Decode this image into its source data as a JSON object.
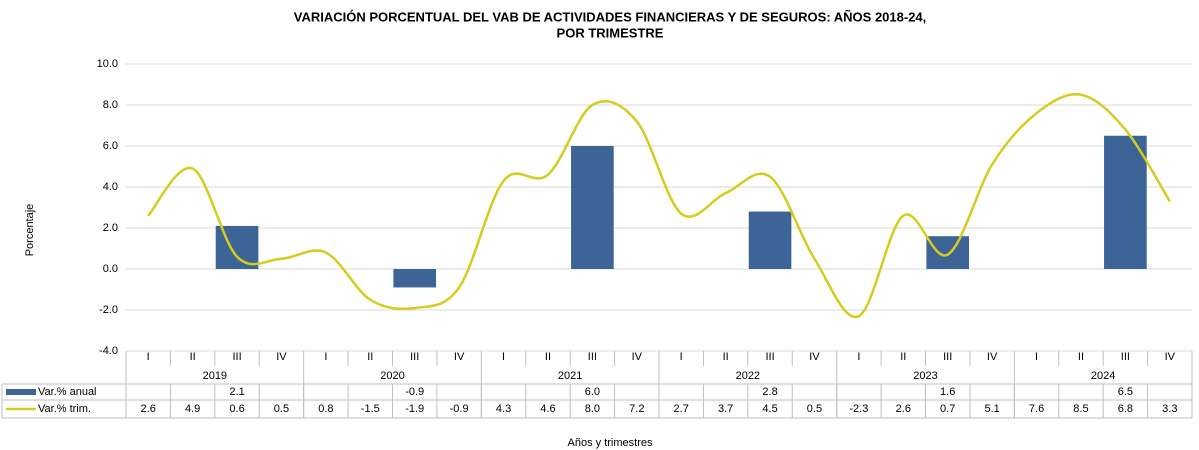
{
  "chart_data": {
    "type": "bar-line",
    "title": [
      "VARIACIÓN PORCENTUAL DEL VAB DE ACTIVIDADES FINANCIERAS Y DE SEGUROS: AÑOS 2018-24,",
      "POR TRIMESTRE"
    ],
    "y_label": "Porcentaje",
    "x_label": "Años y trimestres",
    "categories": [
      "I",
      "II",
      "III",
      "IV",
      "I",
      "II",
      "III",
      "IV",
      "I",
      "II",
      "III",
      "IV",
      "I",
      "II",
      "III",
      "IV",
      "I",
      "II",
      "III",
      "IV",
      "I",
      "II",
      "III",
      "IV"
    ],
    "years": [
      "2019",
      "2020",
      "2021",
      "2022",
      "2023",
      "2024"
    ],
    "ylim": [
      -4,
      10
    ],
    "yticks": [
      {
        "value": -4,
        "label": "-4.0"
      },
      {
        "value": -2,
        "label": "-2.0"
      },
      {
        "value": 0,
        "label": "0.0"
      },
      {
        "value": 2,
        "label": "2.0"
      },
      {
        "value": 4,
        "label": "4.0"
      },
      {
        "value": 6,
        "label": "6.0"
      },
      {
        "value": 8,
        "label": "8.0"
      },
      {
        "value": 10,
        "label": "10.0"
      }
    ],
    "grid": true,
    "series": [
      {
        "name": "Var.% anual",
        "type": "bar",
        "color": "#3c6496",
        "values": [
          null,
          null,
          2.1,
          null,
          null,
          null,
          -0.9,
          null,
          null,
          null,
          6.0,
          null,
          null,
          null,
          2.8,
          null,
          null,
          null,
          1.6,
          null,
          null,
          null,
          6.5,
          null
        ],
        "value_labels": [
          null,
          null,
          "2.1",
          null,
          null,
          null,
          "-0.9",
          null,
          null,
          null,
          "6.0",
          null,
          null,
          null,
          "2.8",
          null,
          null,
          null,
          "1.6",
          null,
          null,
          null,
          "6.5",
          null
        ]
      },
      {
        "name": "Var.% trim.",
        "type": "line",
        "color": "#d4cc1e",
        "values": [
          2.6,
          4.9,
          0.6,
          0.5,
          0.8,
          -1.5,
          -1.9,
          -0.9,
          4.3,
          4.6,
          8.0,
          7.2,
          2.7,
          3.7,
          4.5,
          0.5,
          -2.3,
          2.6,
          0.7,
          5.1,
          7.6,
          8.5,
          6.8,
          3.3
        ],
        "value_labels": [
          "2.6",
          "4.9",
          "0.6",
          "0.5",
          "0.8",
          "-1.5",
          "-1.9",
          "-0.9",
          "4.3",
          "4.6",
          "8.0",
          "7.2",
          "2.7",
          "3.7",
          "4.5",
          "0.5",
          "-2.3",
          "2.6",
          "0.7",
          "5.1",
          "7.6",
          "8.5",
          "6.8",
          "3.3"
        ]
      }
    ]
  }
}
